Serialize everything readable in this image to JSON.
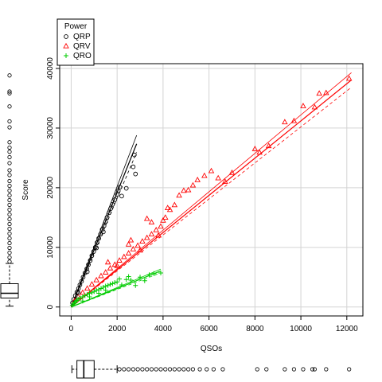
{
  "chart_data": {
    "type": "scatter",
    "xlabel": "QSOs",
    "ylabel": "Score",
    "xlim": [
      -500,
      12700
    ],
    "ylim": [
      -1500,
      40800
    ],
    "x_ticks": [
      0,
      2000,
      4000,
      6000,
      8000,
      10000,
      12000
    ],
    "y_ticks": [
      0,
      10000,
      20000,
      30000,
      40000
    ],
    "grid": true,
    "legend": {
      "title": "Power",
      "position": "top-left"
    },
    "series": [
      {
        "name": "QRP",
        "color": "#000000",
        "marker": "circle",
        "regression": {
          "slope": 9.6,
          "ci_slope_low": 9.1,
          "ci_slope_high": 10.1,
          "x_end": 2850
        },
        "points": [
          [
            60,
            700
          ],
          [
            120,
            1300
          ],
          [
            180,
            1900
          ],
          [
            250,
            2500
          ],
          [
            320,
            3100
          ],
          [
            380,
            3700
          ],
          [
            450,
            4300
          ],
          [
            520,
            5000
          ],
          [
            600,
            5700
          ],
          [
            680,
            6400
          ],
          [
            750,
            7100
          ],
          [
            830,
            7800
          ],
          [
            900,
            8600
          ],
          [
            980,
            9300
          ],
          [
            1050,
            10000
          ],
          [
            1130,
            10800
          ],
          [
            1200,
            11500
          ],
          [
            1280,
            12200
          ],
          [
            1350,
            13000
          ],
          [
            1430,
            13600
          ],
          [
            1500,
            14300
          ],
          [
            1560,
            15000
          ],
          [
            1650,
            15800
          ],
          [
            1720,
            16500
          ],
          [
            1800,
            17200
          ],
          [
            1900,
            18000
          ],
          [
            2000,
            18900
          ],
          [
            2050,
            19500
          ],
          [
            2120,
            20100
          ],
          [
            2200,
            18600
          ],
          [
            2400,
            19900
          ],
          [
            2700,
            23500
          ],
          [
            2750,
            25500
          ],
          [
            2800,
            22300
          ],
          [
            300,
            2400
          ],
          [
            700,
            5900
          ],
          [
            1100,
            9900
          ],
          [
            1400,
            12600
          ]
        ]
      },
      {
        "name": "QRV",
        "color": "#ff0000",
        "marker": "triangle",
        "regression": {
          "slope": 3.12,
          "ci_slope_low": 3.02,
          "ci_slope_high": 3.22,
          "x_end": 12200
        },
        "points": [
          [
            150,
            1000
          ],
          [
            300,
            1700
          ],
          [
            500,
            2400
          ],
          [
            700,
            3100
          ],
          [
            900,
            3800
          ],
          [
            1100,
            4500
          ],
          [
            1300,
            5200
          ],
          [
            1500,
            5800
          ],
          [
            1700,
            6500
          ],
          [
            1900,
            7100
          ],
          [
            2100,
            7800
          ],
          [
            2300,
            8400
          ],
          [
            2500,
            9000
          ],
          [
            2700,
            9700
          ],
          [
            2900,
            10300
          ],
          [
            3100,
            11000
          ],
          [
            3300,
            11600
          ],
          [
            3500,
            12200
          ],
          [
            3700,
            12900
          ],
          [
            3900,
            13500
          ],
          [
            4000,
            14500
          ],
          [
            4200,
            16600
          ],
          [
            4300,
            16300
          ],
          [
            4500,
            17100
          ],
          [
            4700,
            18700
          ],
          [
            4900,
            19500
          ],
          [
            5100,
            19600
          ],
          [
            5300,
            20400
          ],
          [
            5500,
            21300
          ],
          [
            5800,
            22000
          ],
          [
            6100,
            22800
          ],
          [
            6400,
            21600
          ],
          [
            6700,
            21000
          ],
          [
            7000,
            22500
          ],
          [
            8000,
            26500
          ],
          [
            8200,
            25900
          ],
          [
            8600,
            27000
          ],
          [
            9300,
            31000
          ],
          [
            9700,
            31200
          ],
          [
            10100,
            33700
          ],
          [
            10600,
            33500
          ],
          [
            10800,
            35800
          ],
          [
            11100,
            35900
          ],
          [
            12100,
            38300
          ],
          [
            1600,
            7500
          ],
          [
            2000,
            6900
          ],
          [
            2500,
            10500
          ],
          [
            3000,
            9500
          ],
          [
            3500,
            14200
          ],
          [
            3800,
            12000
          ],
          [
            4100,
            15000
          ],
          [
            3300,
            14800
          ],
          [
            2600,
            11200
          ]
        ]
      },
      {
        "name": "QRO",
        "color": "#00cc00",
        "marker": "plus",
        "regression": {
          "slope": 1.55,
          "ci_slope_low": 1.47,
          "ci_slope_high": 1.63,
          "x_end": 3900
        },
        "points": [
          [
            50,
            300
          ],
          [
            100,
            500
          ],
          [
            150,
            700
          ],
          [
            200,
            900
          ],
          [
            250,
            1100
          ],
          [
            300,
            1300
          ],
          [
            400,
            1500
          ],
          [
            500,
            1700
          ],
          [
            600,
            1900
          ],
          [
            700,
            2100
          ],
          [
            800,
            2300
          ],
          [
            900,
            2400
          ],
          [
            1000,
            2600
          ],
          [
            1100,
            2800
          ],
          [
            1200,
            2900
          ],
          [
            1300,
            3100
          ],
          [
            1400,
            3300
          ],
          [
            1500,
            3500
          ],
          [
            1600,
            3600
          ],
          [
            1700,
            3800
          ],
          [
            1800,
            3900
          ],
          [
            1900,
            4100
          ],
          [
            2000,
            4200
          ],
          [
            2200,
            3700
          ],
          [
            2400,
            4600
          ],
          [
            2600,
            4500
          ],
          [
            2800,
            3600
          ],
          [
            3000,
            5000
          ],
          [
            3200,
            4400
          ],
          [
            3400,
            5400
          ],
          [
            3600,
            5600
          ],
          [
            3900,
            5700
          ],
          [
            500,
            1000
          ],
          [
            800,
            1700
          ],
          [
            1200,
            2300
          ],
          [
            1500,
            2800
          ],
          [
            2100,
            4700
          ],
          [
            2500,
            5100
          ]
        ]
      }
    ],
    "marginal_boxplots": {
      "QSOs": {
        "whisker_low": 30,
        "q1": 250,
        "median": 550,
        "q3": 1000,
        "whisker_high": 2000,
        "outliers": [
          2100,
          2300,
          2500,
          2700,
          2900,
          3100,
          3300,
          3500,
          3700,
          3900,
          4100,
          4300,
          4500,
          4700,
          4900,
          5100,
          5300,
          5600,
          5900,
          6200,
          6600,
          8100,
          8500,
          9300,
          9700,
          10100,
          10500,
          10600,
          11100,
          12100
        ]
      },
      "Score": {
        "whisker_low": 40,
        "q1": 1400,
        "median": 2200,
        "q3": 3800,
        "whisker_high": 7200,
        "outliers": [
          7500,
          8200,
          9000,
          9800,
          10600,
          11400,
          12200,
          13000,
          13800,
          14600,
          15400,
          16200,
          17000,
          17800,
          18600,
          19400,
          20200,
          21000,
          22000,
          22800,
          24000,
          25000,
          25900,
          26600,
          27500,
          30000,
          31000,
          33500,
          35700,
          36000,
          38700
        ]
      }
    }
  },
  "legend_title": "Power",
  "legend_items": [
    "QRP",
    "QRV",
    "QRO"
  ],
  "x_tick_labels": [
    "0",
    "2000",
    "4000",
    "6000",
    "8000",
    "10000",
    "12000"
  ],
  "y_tick_labels": [
    "0",
    "10000",
    "20000",
    "30000",
    "40000"
  ]
}
